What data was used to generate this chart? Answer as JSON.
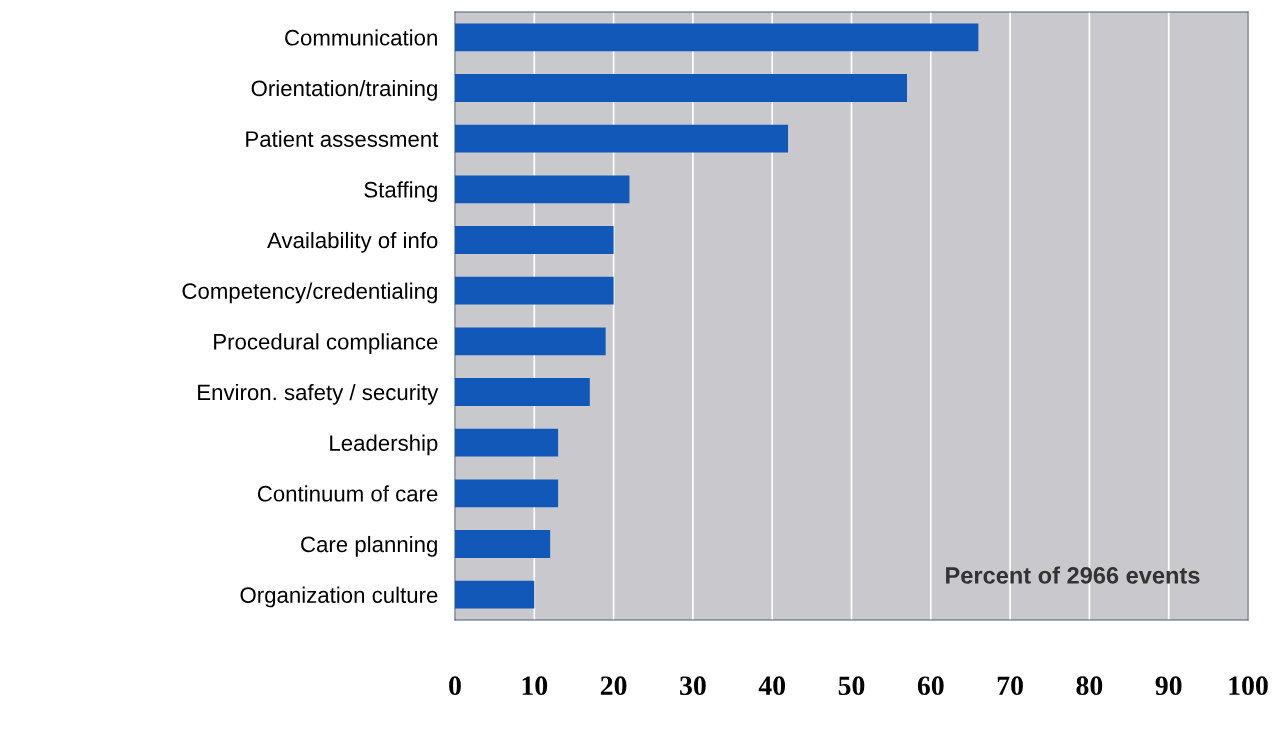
{
  "chart_data": {
    "type": "bar",
    "orientation": "horizontal",
    "categories": [
      "Communication",
      "Orientation/training",
      "Patient assessment",
      "Staffing",
      "Availability of info",
      "Competency/credentialing",
      "Procedural compliance",
      "Environ. safety / security",
      "Leadership",
      "Continuum of care",
      "Care planning",
      "Organization culture"
    ],
    "values": [
      66,
      57,
      42,
      22,
      20,
      20,
      19,
      17,
      13,
      13,
      12,
      10
    ],
    "color": "#1158b8",
    "xlim": [
      0,
      100
    ],
    "xticks": [
      0,
      10,
      20,
      30,
      40,
      50,
      60,
      70,
      80,
      90,
      100
    ],
    "grid": "x",
    "annotations": [
      "Percent of 2966 events"
    ]
  }
}
